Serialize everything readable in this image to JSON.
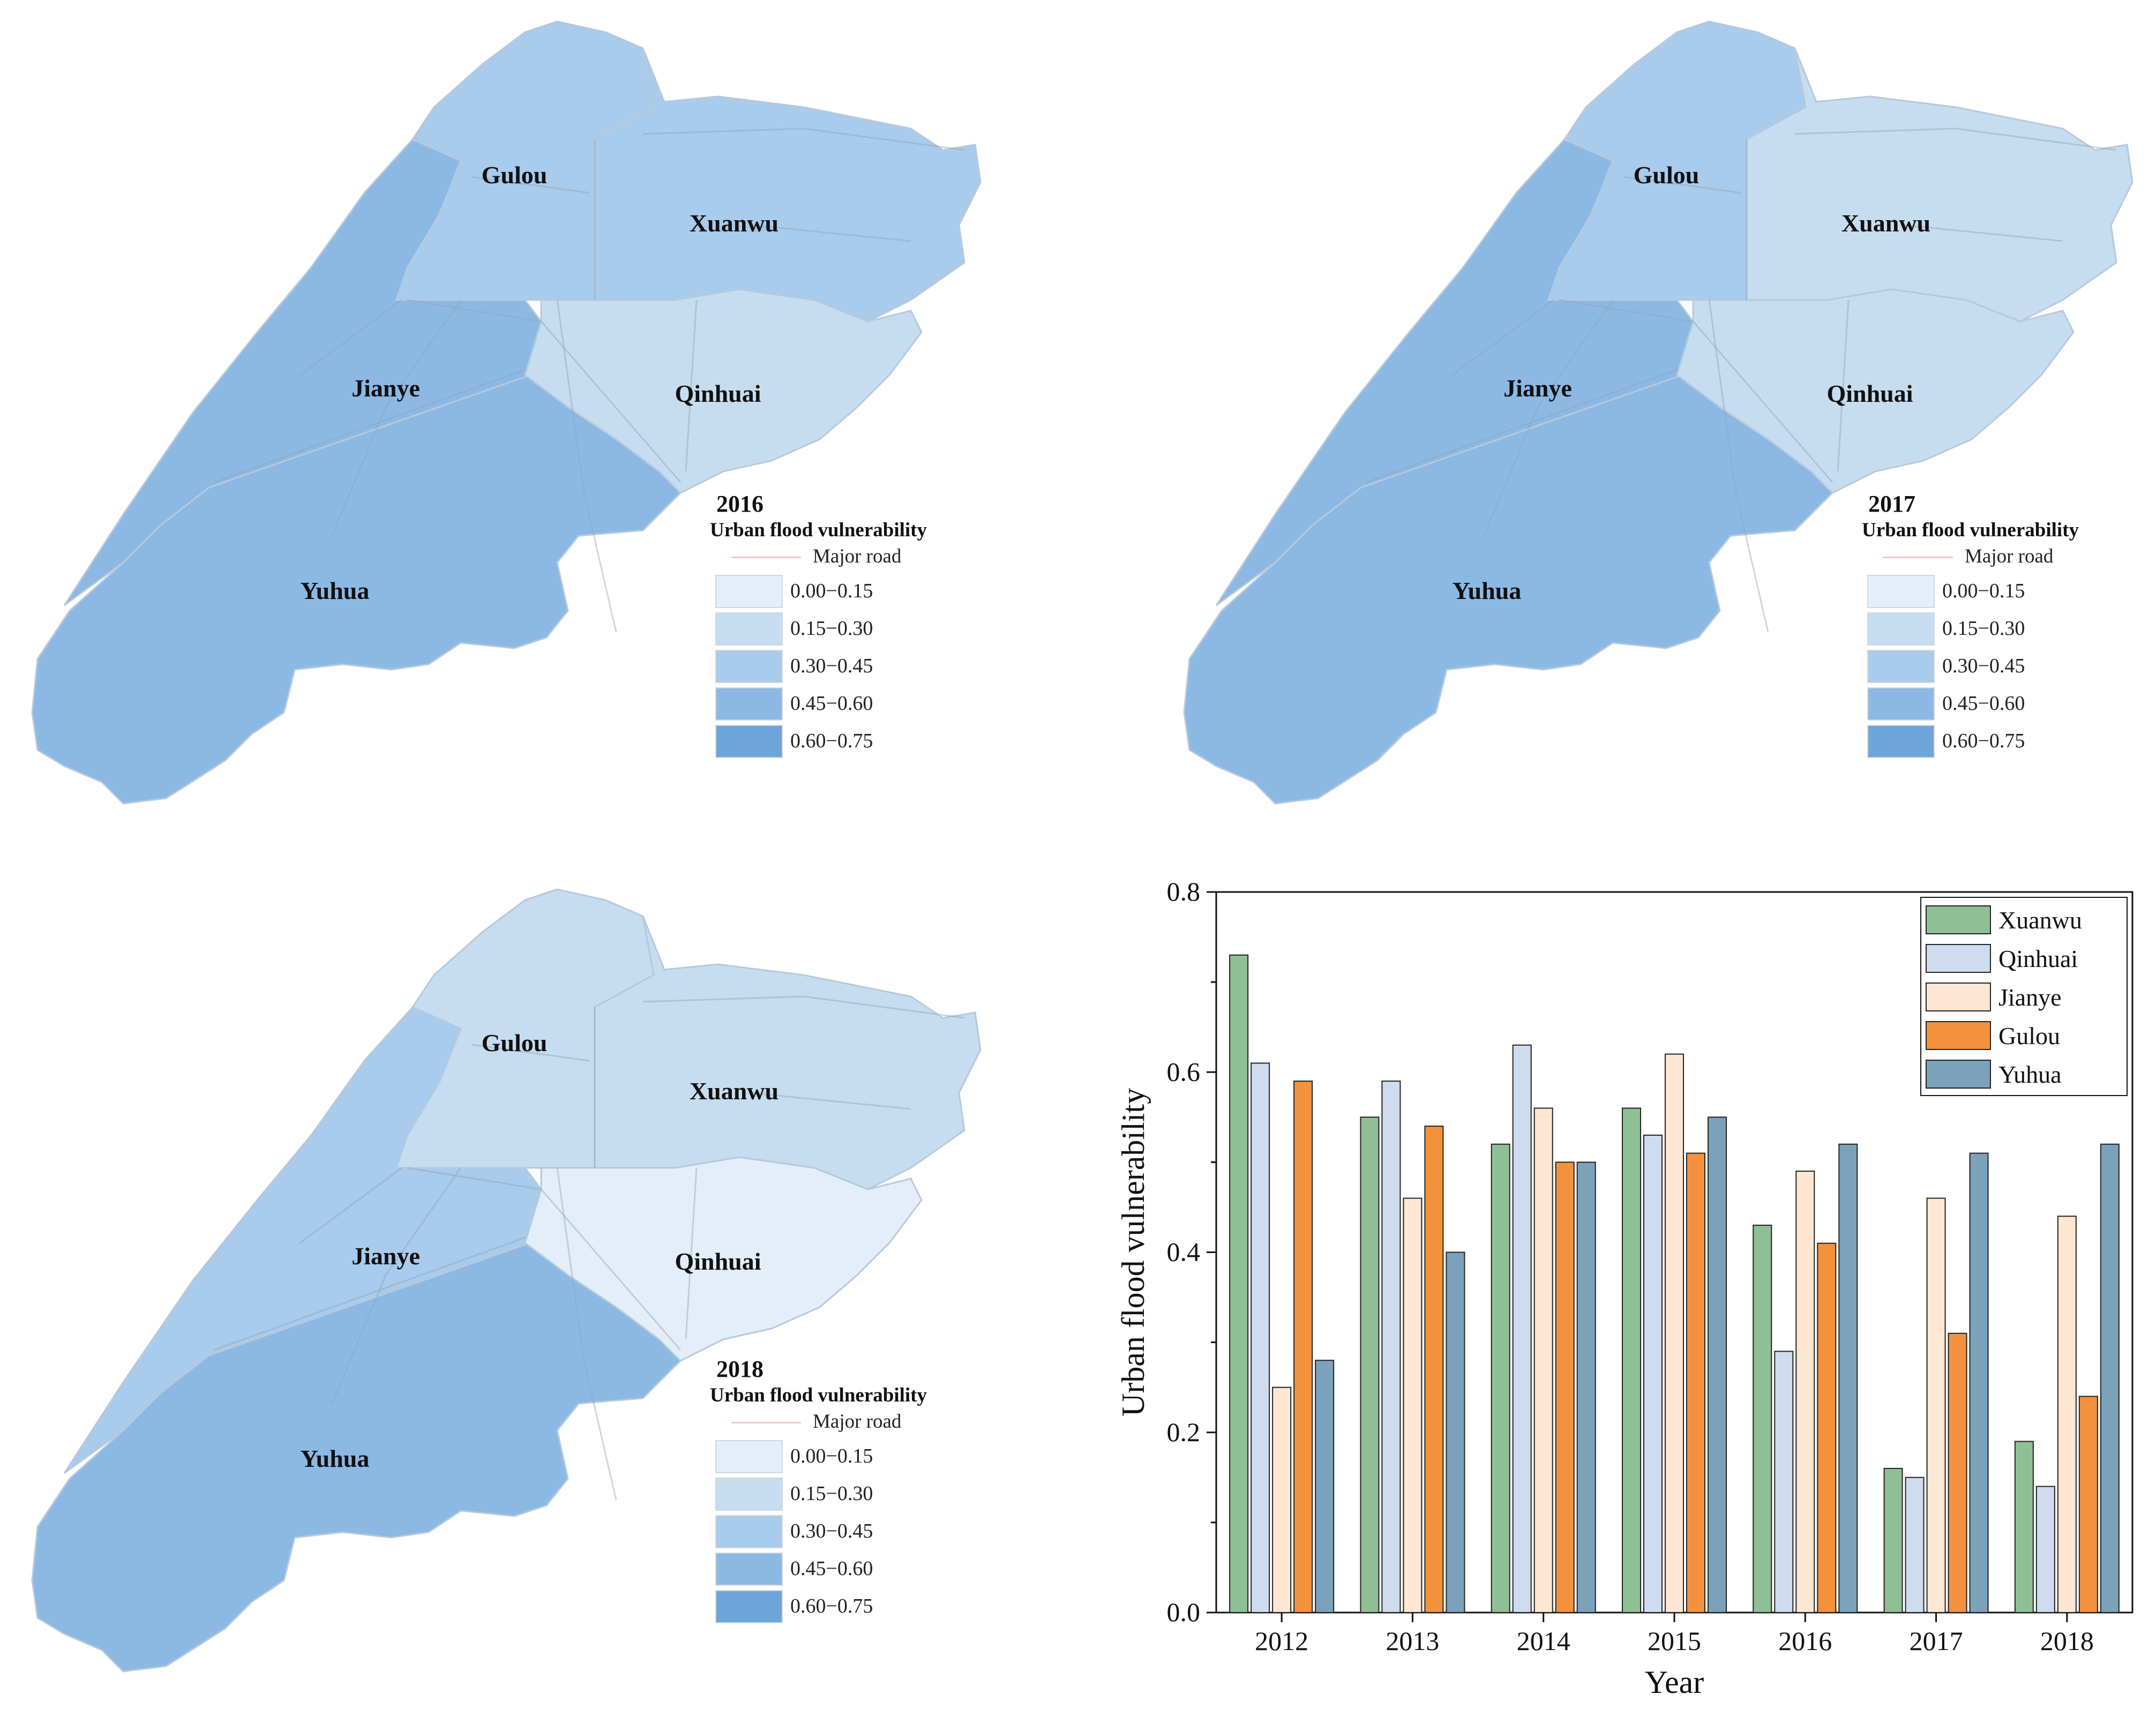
{
  "maps": [
    {
      "year": "2016",
      "legend_title": "Urban flood vulnerability",
      "road_label": "Major road",
      "districts": [
        {
          "name": "Gulou",
          "class": 2
        },
        {
          "name": "Xuanwu",
          "class": 2
        },
        {
          "name": "Jianye",
          "class": 3
        },
        {
          "name": "Qinhuai",
          "class": 1
        },
        {
          "name": "Yuhua",
          "class": 3
        }
      ]
    },
    {
      "year": "2017",
      "legend_title": "Urban flood vulnerability",
      "road_label": "Major road",
      "districts": [
        {
          "name": "Gulou",
          "class": 2
        },
        {
          "name": "Xuanwu",
          "class": 1
        },
        {
          "name": "Jianye",
          "class": 3
        },
        {
          "name": "Qinhuai",
          "class": 1
        },
        {
          "name": "Yuhua",
          "class": 3
        }
      ]
    },
    {
      "year": "2018",
      "legend_title": "Urban flood vulnerability",
      "road_label": "Major road",
      "districts": [
        {
          "name": "Gulou",
          "class": 1
        },
        {
          "name": "Xuanwu",
          "class": 1
        },
        {
          "name": "Jianye",
          "class": 2
        },
        {
          "name": "Qinhuai",
          "class": 0
        },
        {
          "name": "Yuhua",
          "class": 3
        }
      ]
    }
  ],
  "legend_classes": [
    {
      "label": "0.00−0.15",
      "color": "#e3eef9"
    },
    {
      "label": "0.15−0.30",
      "color": "#c6dcf0"
    },
    {
      "label": "0.30−0.45",
      "color": "#a9cbec"
    },
    {
      "label": "0.45−0.60",
      "color": "#8bb9e4"
    },
    {
      "label": "0.60−0.75",
      "color": "#6ea5d8"
    }
  ],
  "chart_data": {
    "type": "bar",
    "title": "",
    "xlabel": "Year",
    "ylabel": "Urban flood vulnerability",
    "ylim": [
      0.0,
      0.8
    ],
    "yticks": [
      "0.0",
      "0.2",
      "0.4",
      "0.6",
      "0.8"
    ],
    "categories": [
      "2012",
      "2013",
      "2014",
      "2015",
      "2016",
      "2017",
      "2018"
    ],
    "series": [
      {
        "name": "Xuanwu",
        "color": "#8fbf95",
        "values": [
          0.73,
          0.55,
          0.52,
          0.56,
          0.43,
          0.16,
          0.19
        ]
      },
      {
        "name": "Qinhuai",
        "color": "#cfdbee",
        "values": [
          0.61,
          0.59,
          0.63,
          0.53,
          0.29,
          0.15,
          0.14
        ]
      },
      {
        "name": "Jianye",
        "color": "#fde6d2",
        "values": [
          0.25,
          0.46,
          0.56,
          0.62,
          0.49,
          0.46,
          0.44
        ]
      },
      {
        "name": "Gulou",
        "color": "#f4913d",
        "values": [
          0.59,
          0.54,
          0.5,
          0.51,
          0.41,
          0.31,
          0.24
        ]
      },
      {
        "name": "Yuhua",
        "color": "#7ca1bb",
        "values": [
          0.28,
          0.4,
          0.5,
          0.55,
          0.52,
          0.51,
          0.52
        ]
      }
    ],
    "legend_position": "top-right"
  }
}
